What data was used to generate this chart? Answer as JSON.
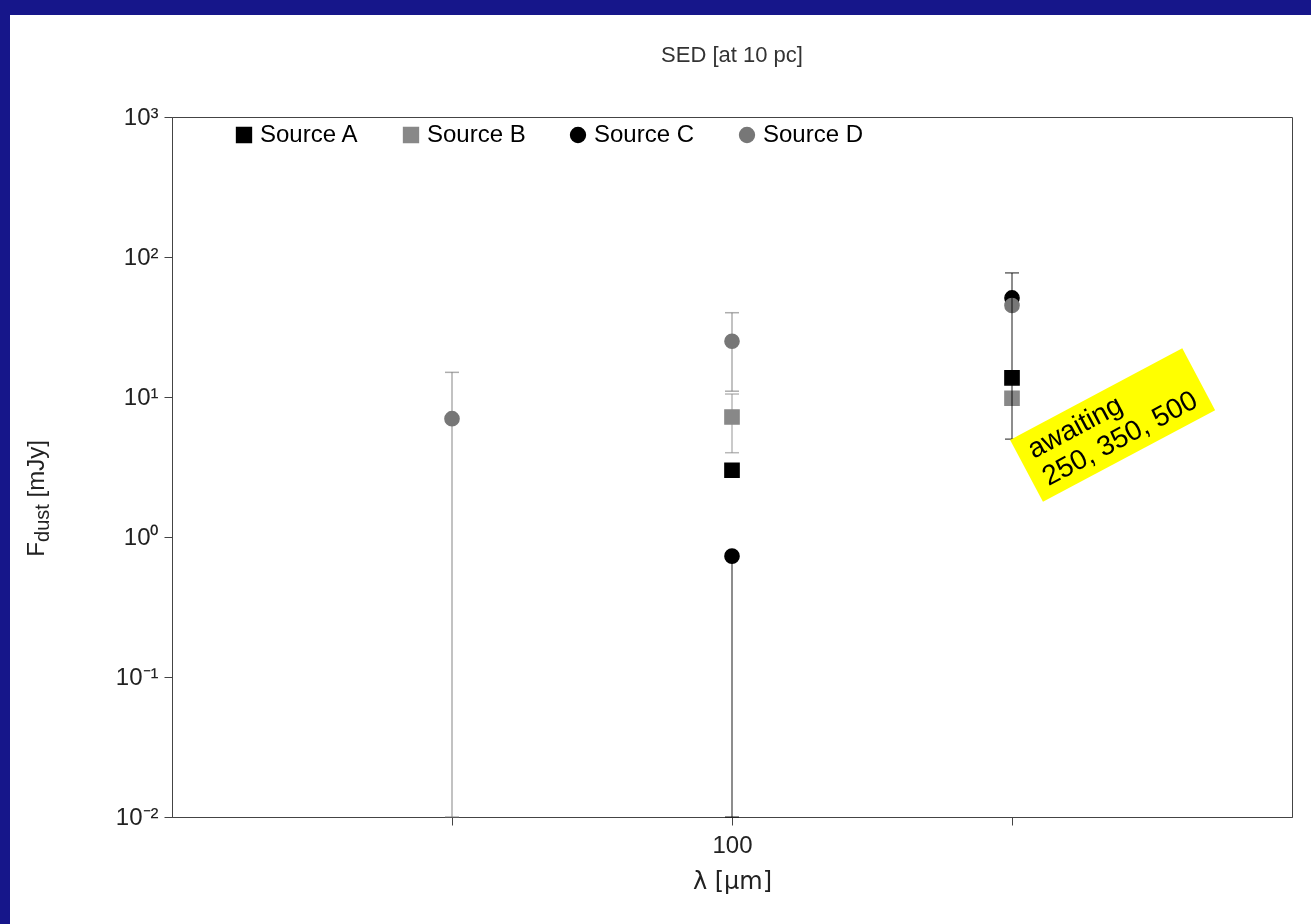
{
  "chart_data": {
    "type": "scatter",
    "title": "SED [at 10 pc]",
    "xlabel": "λ [μm]",
    "ylabel": "F$_{dust}$ [mJy]",
    "log": "y",
    "ylim": [
      0.01,
      1000
    ],
    "categories": [
      null,
      "100",
      null
    ],
    "yticks": [
      {
        "value": 0.01,
        "label": "10⁻²"
      },
      {
        "value": 0.1,
        "label": "10⁻¹"
      },
      {
        "value": 1,
        "label": "10⁰"
      },
      {
        "value": 10,
        "label": "10¹"
      },
      {
        "value": 100,
        "label": "10²"
      },
      {
        "value": 1000,
        "label": "10³"
      }
    ],
    "legend": "top",
    "grid": false,
    "series": [
      {
        "name": "Source A",
        "color": "#000000",
        "marker": "square",
        "values": [
          null,
          3,
          13.7
        ]
      },
      {
        "name": "Source B",
        "color": "#888888",
        "marker": "square",
        "values": [
          null,
          7.2,
          9.8
        ],
        "errors": [
          null,
          [
            4,
            10.5
          ],
          null
        ]
      },
      {
        "name": "Source C",
        "color": "#000000",
        "marker": "circle",
        "values": [
          null,
          0.73,
          51
        ],
        "errors": [
          null,
          [
            0.01,
            0.73
          ],
          [
            5,
            77
          ]
        ]
      },
      {
        "name": "Source D",
        "color": "#777777",
        "marker": "circle",
        "values": [
          7,
          25,
          45
        ],
        "errors": [
          [
            0.01,
            15
          ],
          [
            11,
            40
          ],
          null
        ]
      }
    ],
    "annotations": [
      "awaiting\n250, 350, 500"
    ]
  }
}
